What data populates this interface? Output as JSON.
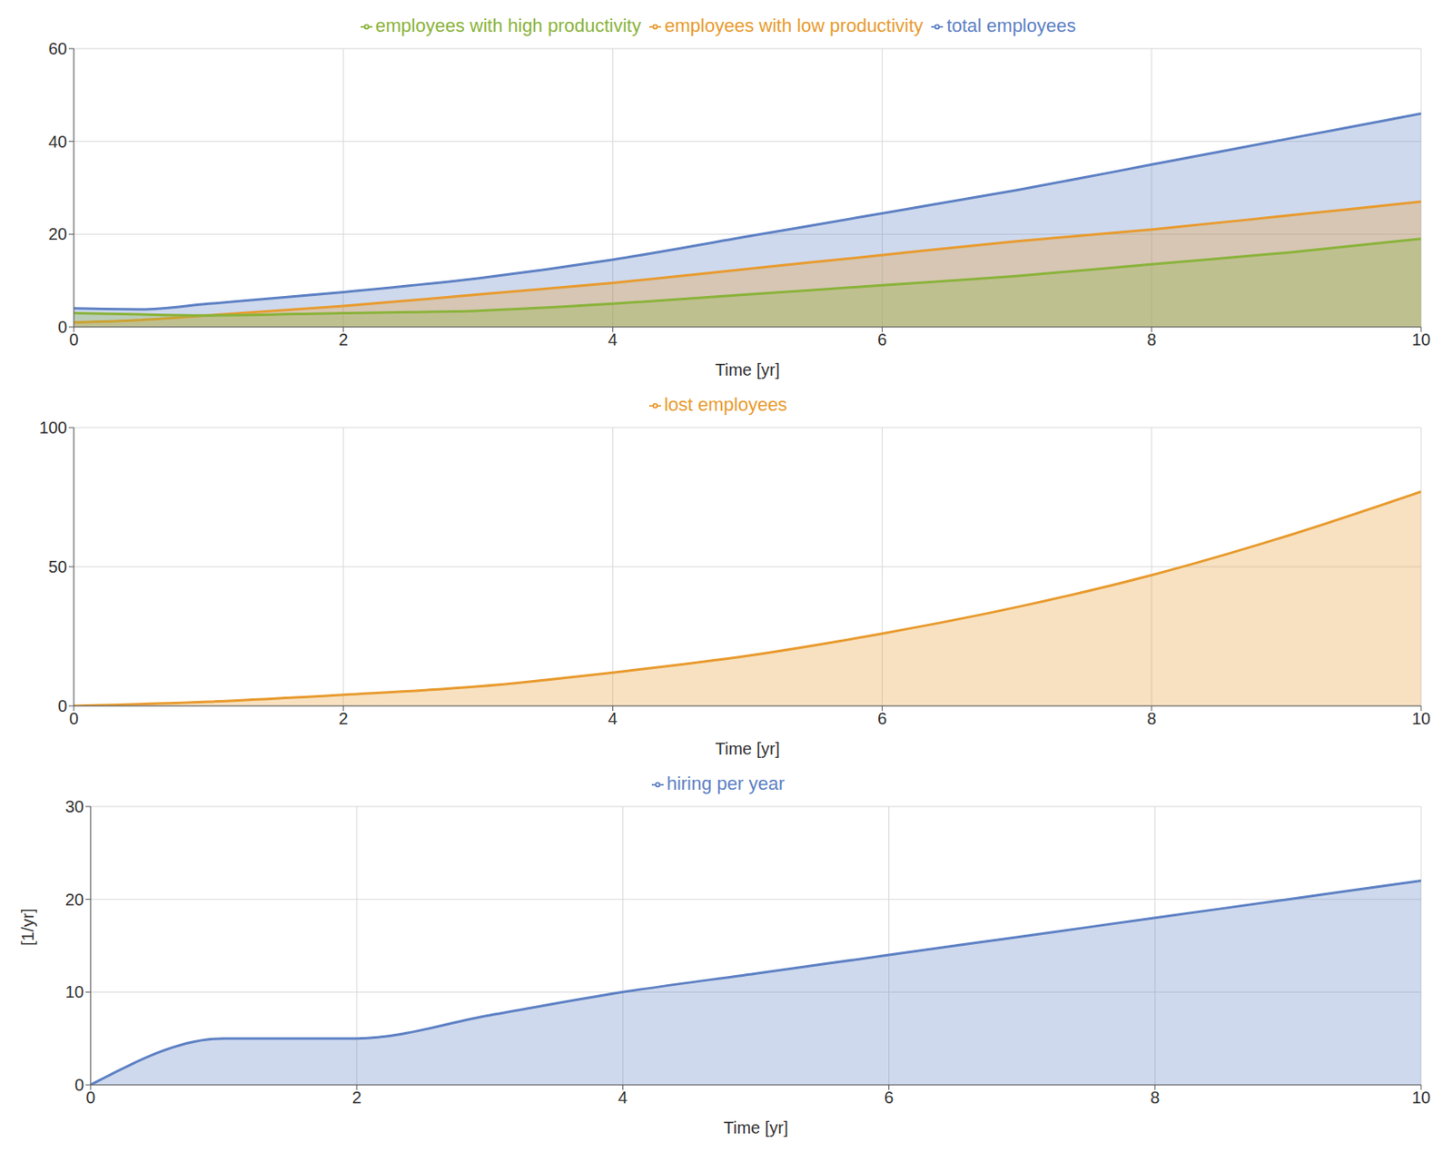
{
  "chart_data": [
    {
      "type": "area",
      "xlabel": "Time [yr]",
      "x": [
        0,
        0.5,
        1,
        2,
        3,
        4,
        5,
        6,
        7,
        8,
        9,
        10
      ],
      "xlim": [
        0,
        10
      ],
      "xticks": [
        0,
        2,
        4,
        6,
        8,
        10
      ],
      "ylim": [
        0,
        60
      ],
      "yticks": [
        0,
        20,
        40,
        60
      ],
      "grid": true,
      "legend": "top",
      "series": [
        {
          "name": "total employees",
          "color": "#5e81c4",
          "values": [
            4,
            3.8,
            5,
            7.5,
            10.5,
            14.5,
            19.5,
            24.5,
            29.5,
            35,
            40.5,
            46
          ]
        },
        {
          "name": "employees with low productivity",
          "color": "#e89b2f",
          "values": [
            1,
            1.5,
            2.5,
            4.5,
            7,
            9.5,
            12.5,
            15.5,
            18.5,
            21,
            24,
            27
          ]
        },
        {
          "name": "employees with high productivity",
          "color": "#8ab33a",
          "values": [
            3,
            2.7,
            2.5,
            3,
            3.5,
            5,
            7,
            9,
            11,
            13.5,
            16,
            19
          ]
        }
      ]
    },
    {
      "type": "area",
      "xlabel": "Time [yr]",
      "x": [
        0,
        1,
        2,
        3,
        4,
        5,
        6,
        7,
        8,
        9,
        10
      ],
      "xlim": [
        0,
        10
      ],
      "xticks": [
        0,
        2,
        4,
        6,
        8,
        10
      ],
      "ylim": [
        0,
        100
      ],
      "yticks": [
        0,
        50,
        100
      ],
      "grid": true,
      "legend": "top",
      "series": [
        {
          "name": "lost employees",
          "color": "#e89b2f",
          "values": [
            0,
            1.5,
            4,
            7,
            12,
            18,
            26,
            35.5,
            47,
            61,
            77
          ]
        }
      ]
    },
    {
      "type": "area",
      "xlabel": "Time [yr]",
      "ylabel": "[1/yr]",
      "x": [
        0,
        1,
        2,
        3,
        4,
        5,
        6,
        7,
        8,
        9,
        10
      ],
      "xlim": [
        0,
        10
      ],
      "xticks": [
        0,
        2,
        4,
        6,
        8,
        10
      ],
      "ylim": [
        0,
        30
      ],
      "yticks": [
        0,
        10,
        20,
        30
      ],
      "grid": true,
      "legend": "top",
      "series": [
        {
          "name": "hiring per year",
          "color": "#5e81c4",
          "values": [
            0,
            5,
            5,
            7.5,
            10,
            12,
            14,
            16,
            18,
            20,
            22
          ]
        }
      ]
    }
  ]
}
